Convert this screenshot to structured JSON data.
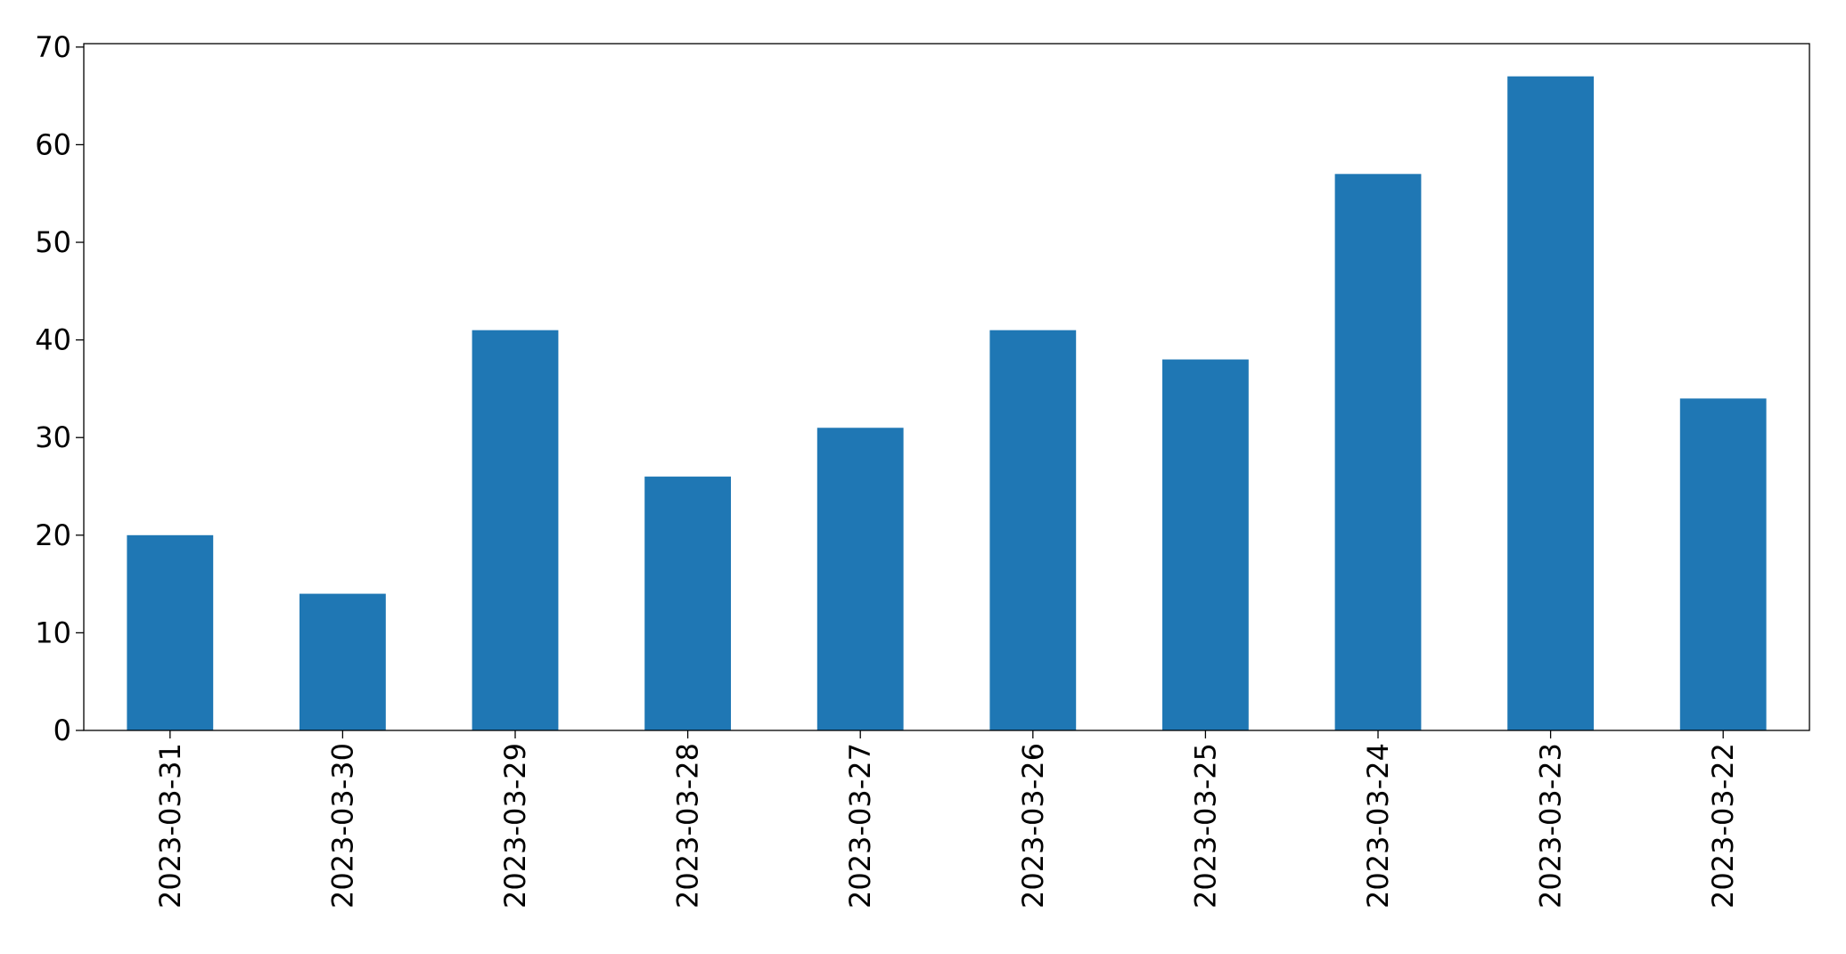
{
  "chart_data": {
    "type": "bar",
    "categories": [
      "2023-03-31",
      "2023-03-30",
      "2023-03-29",
      "2023-03-28",
      "2023-03-27",
      "2023-03-26",
      "2023-03-25",
      "2023-03-24",
      "2023-03-23",
      "2023-03-22"
    ],
    "values": [
      20,
      14,
      41,
      26,
      31,
      41,
      38,
      57,
      67,
      34
    ],
    "color": "#1f77b4",
    "ylim": [
      0,
      70.35
    ],
    "yticks": [
      0,
      10,
      20,
      30,
      40,
      50,
      60,
      70
    ],
    "grid": false
  }
}
